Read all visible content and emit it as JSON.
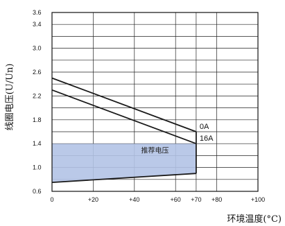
{
  "chart_data": {
    "type": "line",
    "title": "",
    "xlabel": "环境温度(°C)",
    "ylabel": "线圈电压(U/Un)",
    "xlim": [
      0,
      100
    ],
    "ylim": [
      0.6,
      3.6
    ],
    "x_ticks": [
      0,
      20,
      40,
      60,
      70,
      80,
      100
    ],
    "x_tick_labels": [
      "0",
      "+20",
      "+40",
      "+60",
      "+70",
      "+80",
      "+100"
    ],
    "y_ticks": [
      0.6,
      1.0,
      1.4,
      1.8,
      2.2,
      2.6,
      3.0,
      3.4,
      3.6
    ],
    "y_tick_labels": [
      "0.6",
      "1.0",
      "1.4",
      "1.8",
      "2.2",
      "2.6",
      "3.0",
      "3.4",
      "3.6"
    ],
    "grid": true,
    "series": [
      {
        "name": "0A",
        "x": [
          0,
          70
        ],
        "y": [
          2.5,
          1.6
        ]
      },
      {
        "name": "16A",
        "x": [
          0,
          70
        ],
        "y": [
          2.3,
          1.4
        ]
      }
    ],
    "lower_limit": {
      "x": [
        0,
        70
      ],
      "y": [
        0.75,
        0.9
      ]
    },
    "recommended_region": {
      "label": "推荐电压",
      "x_range": [
        0,
        70
      ],
      "y_top": 1.4,
      "y_bottom_start": 0.75,
      "y_bottom_end": 0.9
    },
    "colors": {
      "line": "#1a1a1a",
      "grid": "#222222",
      "fill": "#b3c3e6"
    }
  }
}
